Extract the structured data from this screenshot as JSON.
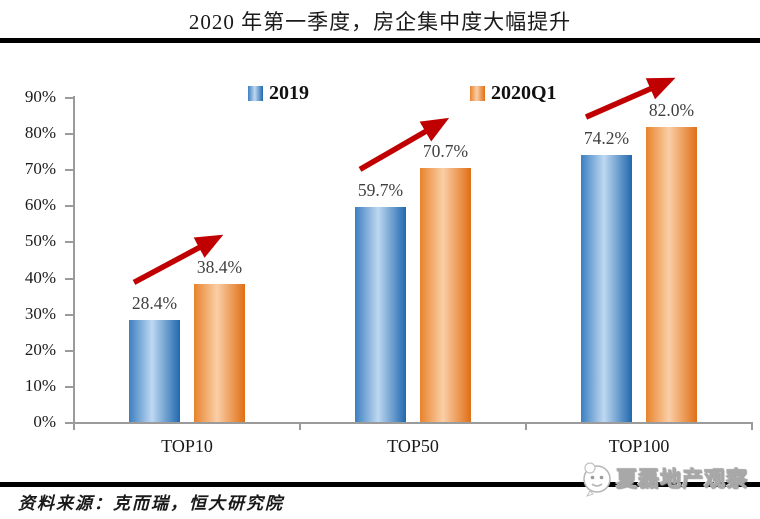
{
  "title": "2020 年第一季度，房企集中度大幅提升",
  "source_note": "资料来源：克而瑞，恒大研究院",
  "watermark": {
    "text": "夏磊地产观察"
  },
  "colors": {
    "blue_dark": "#2068ae",
    "blue_light": "#bed8f1",
    "orange_dark": "#e06f15",
    "orange_light": "#facea7",
    "arrow": "#c00000",
    "axis": "#9b9b9b",
    "value_label": "#3f3f3f"
  },
  "chart_data": {
    "type": "bar",
    "categories": [
      "TOP10",
      "TOP50",
      "TOP100"
    ],
    "series": [
      {
        "name": "2019",
        "color_key": "blue",
        "values": [
          28.4,
          59.7,
          74.2
        ]
      },
      {
        "name": "2020Q1",
        "color_key": "orange",
        "values": [
          38.4,
          70.7,
          82.0
        ]
      }
    ],
    "value_label_suffix": "%",
    "y_ticks": [
      "0%",
      "10%",
      "20%",
      "30%",
      "40%",
      "50%",
      "60%",
      "70%",
      "80%",
      "90%"
    ],
    "ylim": [
      0,
      90
    ],
    "grid": false,
    "legend_position": "top",
    "annotations": "dark-red upward arrow from 2019 bar to 2020Q1 bar in each category"
  }
}
